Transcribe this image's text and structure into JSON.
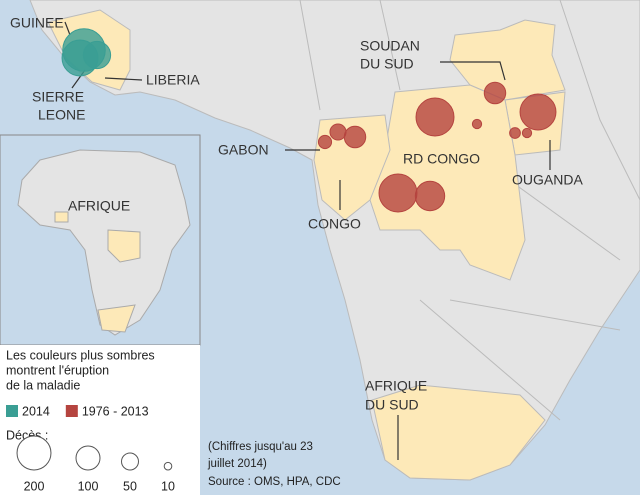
{
  "map_labels": {
    "guinee": "GUINEE",
    "sierra_leone": [
      "SIERRE",
      "LEONE"
    ],
    "liberia": "LIBERIA",
    "soudan_du_sud": [
      "SOUDAN",
      "DU SUD"
    ],
    "gabon": "GABON",
    "rd_congo": "RD CONGO",
    "congo": "CONGO",
    "ouganda": "OUGANDA",
    "afrique_du_sud": [
      "AFRIQUE",
      "DU SUD"
    ]
  },
  "inset_label": "AFRIQUE",
  "legend": {
    "note": [
      "Les couleurs plus sombres",
      "montrent l'éruption",
      "de la maladie"
    ],
    "periods": [
      {
        "label": "2014",
        "color": "#3a9e94"
      },
      {
        "label": "1976 - 2013",
        "color": "#b5443f"
      }
    ],
    "size_title": "Décès :",
    "sizes": [
      200,
      100,
      50,
      10
    ]
  },
  "outbreaks": {
    "period_2014": [
      314,
      224,
      129
    ],
    "period_1976_2013": [
      250,
      250,
      150,
      224,
      80,
      80,
      45,
      30,
      15,
      20,
      15
    ]
  },
  "source": [
    "(Chiffres jusqu'au 23",
    "juillet 2014)",
    "Source : OMS, HPA, CDC"
  ]
}
